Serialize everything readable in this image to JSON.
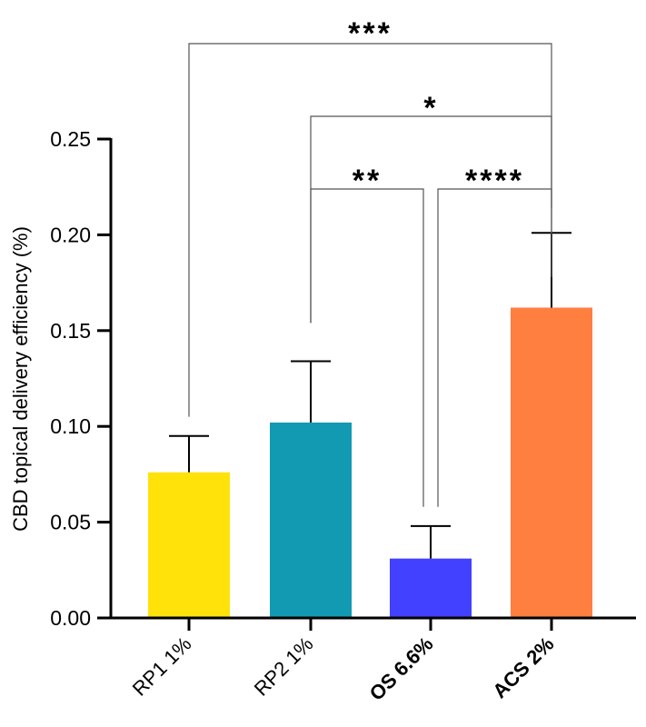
{
  "chart_data": {
    "type": "bar",
    "title": "",
    "xlabel": "",
    "ylabel": "CBD topical delivery efficiency (%)",
    "ylim": [
      0,
      0.25
    ],
    "yticks": [
      "0.00",
      "0.05",
      "0.10",
      "0.15",
      "0.20",
      "0.25"
    ],
    "grid": false,
    "categories": [
      "RP1 1%",
      "RP2 1%",
      "OS 6.6%",
      "ACS 2%"
    ],
    "bold_categories": [
      "OS 6.6%",
      "ACS 2%"
    ],
    "values": [
      0.076,
      0.102,
      0.031,
      0.162
    ],
    "error_upper": [
      0.095,
      0.134,
      0.048,
      0.201
    ],
    "colors": [
      "#FFE20A",
      "#119AB2",
      "#4141FF",
      "#FF7F41"
    ],
    "significance": [
      {
        "from": "RP1 1%",
        "to": "ACS 2%",
        "label": "***"
      },
      {
        "from": "RP2 1%",
        "to": "ACS 2%",
        "label": "*"
      },
      {
        "from": "RP2 1%",
        "to": "OS 6.6%",
        "label": "**"
      },
      {
        "from": "OS 6.6%",
        "to": "ACS 2%",
        "label": "****"
      }
    ]
  }
}
